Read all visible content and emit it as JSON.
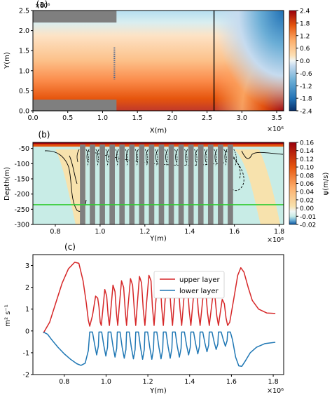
{
  "chart_data": [
    {
      "panel": "(a)",
      "type": "heatmap",
      "xlabel": "X(m)",
      "ylabel": "Y(m)",
      "xlim": [
        0,
        3.6
      ],
      "ylim": [
        0,
        2.5
      ],
      "x_offset_label": "×10⁶",
      "y_offset_label": "×10⁶",
      "xticks": [
        "0.0",
        "0.5",
        "1.0",
        "1.5",
        "2.0",
        "2.5",
        "3.0",
        "3.5"
      ],
      "yticks": [
        "0.0",
        "0.5",
        "1.0",
        "1.5",
        "2.0",
        "2.5"
      ],
      "colorbar": {
        "min": -2.4,
        "max": 2.4,
        "ticks": [
          "2.4",
          "1.8",
          "1.2",
          "0.6",
          "0.0",
          "-0.6",
          "-1.2",
          "-1.8",
          "-2.4"
        ]
      },
      "vertical_line_x": 2.6,
      "land_blocks": [
        {
          "x0": 0,
          "x1": 1.2,
          "y0": 2.2,
          "y1": 2.5
        },
        {
          "x0": 0,
          "x1": 1.2,
          "y0": 0,
          "y1": 0.28
        }
      ],
      "dashed_marker": {
        "x": 1.2,
        "y0": 0.78,
        "y1": 1.58
      },
      "colors": {
        "land": "#7f7f7f",
        "line": "#000000"
      }
    },
    {
      "panel": "(b)",
      "type": "heatmap",
      "xlabel": "Y(m)",
      "ylabel": "Depth(m)",
      "xlim": [
        0.7,
        1.82
      ],
      "ylim": [
        -300,
        -30
      ],
      "x_offset_label": "×10⁶",
      "xticks": [
        "0.8",
        "1.0",
        "1.2",
        "1.4",
        "1.6",
        "1.8"
      ],
      "yticks": [
        "-50",
        "-100",
        "-150",
        "-200",
        "-250",
        "-300"
      ],
      "colorbar": {
        "label": "ψ(m/s)",
        "ticks": [
          "0.16",
          "0.14",
          "0.12",
          "0.10",
          "0.08",
          "0.06",
          "0.04",
          "0.02",
          "0.00",
          "-0.01",
          "-0.02"
        ]
      },
      "ridge_positions": [
        0.922,
        0.966,
        1.01,
        1.054,
        1.098,
        1.142,
        1.186,
        1.23,
        1.274,
        1.318,
        1.362,
        1.406,
        1.45,
        1.494,
        1.538,
        1.582
      ],
      "ridge_width": 0.024,
      "interface_depth": -235,
      "colors": {
        "ridge": "#7f7f7f",
        "interface": "#33cc33",
        "positive": "#f7e2ad",
        "negative": "#c8ece6"
      }
    },
    {
      "panel": "(c)",
      "type": "line",
      "xlabel": "Y(m)",
      "ylabel": "m² s⁻¹",
      "xlim": [
        0.65,
        1.85
      ],
      "ylim": [
        -2,
        3.5
      ],
      "x_offset_label": "×10⁶",
      "xticks": [
        "0.8",
        "1.0",
        "1.2",
        "1.4",
        "1.6",
        "1.8"
      ],
      "yticks": [
        "3",
        "2",
        "1",
        "0",
        "-1",
        "-2"
      ],
      "legend": "top-center",
      "series": [
        {
          "name": "upper layer",
          "color": "#d62728",
          "points": [
            [
              0.7,
              -0.1
            ],
            [
              0.73,
              0.4
            ],
            [
              0.76,
              1.3
            ],
            [
              0.79,
              2.2
            ],
            [
              0.82,
              2.85
            ],
            [
              0.85,
              3.15
            ],
            [
              0.87,
              3.1
            ],
            [
              0.89,
              2.3
            ],
            [
              0.905,
              1.3
            ],
            [
              0.915,
              0.5
            ],
            [
              0.922,
              0.22
            ],
            [
              0.935,
              0.7
            ],
            [
              0.95,
              1.6
            ],
            [
              0.96,
              1.5
            ],
            [
              0.966,
              1.1
            ],
            [
              0.972,
              0.4
            ],
            [
              0.977,
              0.25
            ],
            [
              0.985,
              1.0
            ],
            [
              0.994,
              1.9
            ],
            [
              1.003,
              1.6
            ],
            [
              1.01,
              0.7
            ],
            [
              1.016,
              0.25
            ],
            [
              1.023,
              1.0
            ],
            [
              1.033,
              2.1
            ],
            [
              1.043,
              1.8
            ],
            [
              1.05,
              0.8
            ],
            [
              1.056,
              0.25
            ],
            [
              1.063,
              1.1
            ],
            [
              1.074,
              2.3
            ],
            [
              1.084,
              2.0
            ],
            [
              1.092,
              0.9
            ],
            [
              1.098,
              0.25
            ],
            [
              1.106,
              1.2
            ],
            [
              1.117,
              2.4
            ],
            [
              1.127,
              2.1
            ],
            [
              1.135,
              1.0
            ],
            [
              1.142,
              0.25
            ],
            [
              1.15,
              1.3
            ],
            [
              1.16,
              2.5
            ],
            [
              1.17,
              2.2
            ],
            [
              1.178,
              1.0
            ],
            [
              1.186,
              0.25
            ],
            [
              1.194,
              1.3
            ],
            [
              1.205,
              2.55
            ],
            [
              1.215,
              2.3
            ],
            [
              1.222,
              1.1
            ],
            [
              1.23,
              0.25
            ],
            [
              1.238,
              1.3
            ],
            [
              1.249,
              2.6
            ],
            [
              1.259,
              2.4
            ],
            [
              1.266,
              1.1
            ],
            [
              1.274,
              0.25
            ],
            [
              1.282,
              1.3
            ],
            [
              1.292,
              2.55
            ],
            [
              1.302,
              2.3
            ],
            [
              1.31,
              1.1
            ],
            [
              1.318,
              0.25
            ],
            [
              1.326,
              1.3
            ],
            [
              1.336,
              2.5
            ],
            [
              1.346,
              2.2
            ],
            [
              1.354,
              1.0
            ],
            [
              1.362,
              0.25
            ],
            [
              1.37,
              1.2
            ],
            [
              1.38,
              2.35
            ],
            [
              1.39,
              2.05
            ],
            [
              1.398,
              0.9
            ],
            [
              1.406,
              0.25
            ],
            [
              1.414,
              1.1
            ],
            [
              1.424,
              2.15
            ],
            [
              1.434,
              1.9
            ],
            [
              1.442,
              0.85
            ],
            [
              1.45,
              0.25
            ],
            [
              1.458,
              1.0
            ],
            [
              1.468,
              1.95
            ],
            [
              1.478,
              1.7
            ],
            [
              1.486,
              0.8
            ],
            [
              1.494,
              0.25
            ],
            [
              1.502,
              0.9
            ],
            [
              1.512,
              1.7
            ],
            [
              1.522,
              1.5
            ],
            [
              1.53,
              0.7
            ],
            [
              1.538,
              0.25
            ],
            [
              1.546,
              0.8
            ],
            [
              1.556,
              1.45
            ],
            [
              1.566,
              1.25
            ],
            [
              1.574,
              0.6
            ],
            [
              1.582,
              0.25
            ],
            [
              1.592,
              0.4
            ],
            [
              1.61,
              1.4
            ],
            [
              1.63,
              2.55
            ],
            [
              1.645,
              2.9
            ],
            [
              1.66,
              2.7
            ],
            [
              1.68,
              2.0
            ],
            [
              1.7,
              1.4
            ],
            [
              1.73,
              1.0
            ],
            [
              1.77,
              0.82
            ],
            [
              1.81,
              0.8
            ]
          ]
        },
        {
          "name": "lower layer",
          "color": "#1f77b4",
          "points": [
            [
              0.7,
              -0.05
            ],
            [
              0.72,
              -0.15
            ],
            [
              0.74,
              -0.4
            ],
            [
              0.77,
              -0.75
            ],
            [
              0.8,
              -1.05
            ],
            [
              0.83,
              -1.3
            ],
            [
              0.86,
              -1.5
            ],
            [
              0.88,
              -1.58
            ],
            [
              0.9,
              -1.48
            ],
            [
              0.915,
              -0.9
            ],
            [
              0.922,
              -0.05
            ],
            [
              0.935,
              -0.05
            ],
            [
              0.945,
              -0.6
            ],
            [
              0.955,
              -1.1
            ],
            [
              0.963,
              -0.7
            ],
            [
              0.966,
              -0.05
            ],
            [
              0.979,
              -0.05
            ],
            [
              0.989,
              -0.65
            ],
            [
              0.999,
              -1.15
            ],
            [
              1.007,
              -0.75
            ],
            [
              1.01,
              -0.05
            ],
            [
              1.023,
              -0.05
            ],
            [
              1.033,
              -0.7
            ],
            [
              1.043,
              -1.2
            ],
            [
              1.051,
              -0.8
            ],
            [
              1.054,
              -0.05
            ],
            [
              1.067,
              -0.05
            ],
            [
              1.077,
              -0.75
            ],
            [
              1.087,
              -1.25
            ],
            [
              1.095,
              -0.85
            ],
            [
              1.098,
              -0.05
            ],
            [
              1.111,
              -0.05
            ],
            [
              1.121,
              -0.75
            ],
            [
              1.131,
              -1.28
            ],
            [
              1.139,
              -0.85
            ],
            [
              1.142,
              -0.05
            ],
            [
              1.155,
              -0.05
            ],
            [
              1.165,
              -0.75
            ],
            [
              1.175,
              -1.3
            ],
            [
              1.183,
              -0.85
            ],
            [
              1.186,
              -0.05
            ],
            [
              1.199,
              -0.05
            ],
            [
              1.209,
              -0.75
            ],
            [
              1.219,
              -1.3
            ],
            [
              1.227,
              -0.85
            ],
            [
              1.23,
              -0.05
            ],
            [
              1.243,
              -0.05
            ],
            [
              1.253,
              -0.75
            ],
            [
              1.263,
              -1.28
            ],
            [
              1.271,
              -0.85
            ],
            [
              1.274,
              -0.05
            ],
            [
              1.287,
              -0.05
            ],
            [
              1.297,
              -0.72
            ],
            [
              1.307,
              -1.25
            ],
            [
              1.315,
              -0.8
            ],
            [
              1.318,
              -0.05
            ],
            [
              1.331,
              -0.05
            ],
            [
              1.341,
              -0.7
            ],
            [
              1.351,
              -1.2
            ],
            [
              1.359,
              -0.8
            ],
            [
              1.362,
              -0.05
            ],
            [
              1.375,
              -0.05
            ],
            [
              1.385,
              -0.65
            ],
            [
              1.395,
              -1.1
            ],
            [
              1.403,
              -0.75
            ],
            [
              1.406,
              -0.05
            ],
            [
              1.419,
              -0.05
            ],
            [
              1.429,
              -0.6
            ],
            [
              1.439,
              -1.05
            ],
            [
              1.447,
              -0.7
            ],
            [
              1.45,
              -0.05
            ],
            [
              1.463,
              -0.05
            ],
            [
              1.473,
              -0.55
            ],
            [
              1.483,
              -0.95
            ],
            [
              1.491,
              -0.65
            ],
            [
              1.494,
              -0.05
            ],
            [
              1.507,
              -0.05
            ],
            [
              1.517,
              -0.5
            ],
            [
              1.527,
              -0.85
            ],
            [
              1.535,
              -0.6
            ],
            [
              1.538,
              -0.05
            ],
            [
              1.551,
              -0.05
            ],
            [
              1.561,
              -0.4
            ],
            [
              1.571,
              -0.7
            ],
            [
              1.579,
              -0.45
            ],
            [
              1.582,
              -0.05
            ],
            [
              1.595,
              -0.05
            ],
            [
              1.605,
              -0.4
            ],
            [
              1.62,
              -1.2
            ],
            [
              1.635,
              -1.6
            ],
            [
              1.65,
              -1.62
            ],
            [
              1.665,
              -1.4
            ],
            [
              1.69,
              -1.0
            ],
            [
              1.72,
              -0.75
            ],
            [
              1.76,
              -0.58
            ],
            [
              1.81,
              -0.52
            ]
          ]
        }
      ]
    }
  ]
}
